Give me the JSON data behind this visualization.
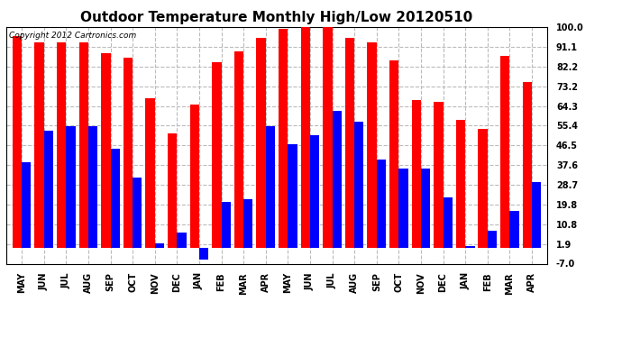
{
  "title": "Outdoor Temperature Monthly High/Low 20120510",
  "copyright": "Copyright 2012 Cartronics.com",
  "months": [
    "MAY",
    "JUN",
    "JUL",
    "AUG",
    "SEP",
    "OCT",
    "NOV",
    "DEC",
    "JAN",
    "FEB",
    "MAR",
    "APR",
    "MAY",
    "JUN",
    "JUL",
    "AUG",
    "SEP",
    "OCT",
    "NOV",
    "DEC",
    "JAN",
    "FEB",
    "MAR",
    "APR"
  ],
  "highs": [
    96,
    93,
    93,
    93,
    88,
    86,
    68,
    52,
    65,
    84,
    89,
    95,
    99,
    102,
    104,
    95,
    93,
    85,
    67,
    66,
    58,
    54,
    87,
    75
  ],
  "lows": [
    39,
    53,
    55,
    55,
    45,
    32,
    2,
    7,
    -5,
    21,
    22,
    55,
    47,
    51,
    62,
    57,
    40,
    36,
    36,
    23,
    1,
    8,
    17,
    30
  ],
  "high_color": "#ff0000",
  "low_color": "#0000ff",
  "bg_color": "#ffffff",
  "grid_color": "#bbbbbb",
  "ylim": [
    -7,
    100
  ],
  "yticks": [
    -7.0,
    1.9,
    10.8,
    19.8,
    28.7,
    37.6,
    46.5,
    55.4,
    64.3,
    73.2,
    82.2,
    91.1,
    100.0
  ],
  "bar_width": 0.42,
  "title_fontsize": 11,
  "tick_fontsize": 7,
  "copyright_fontsize": 6.5
}
